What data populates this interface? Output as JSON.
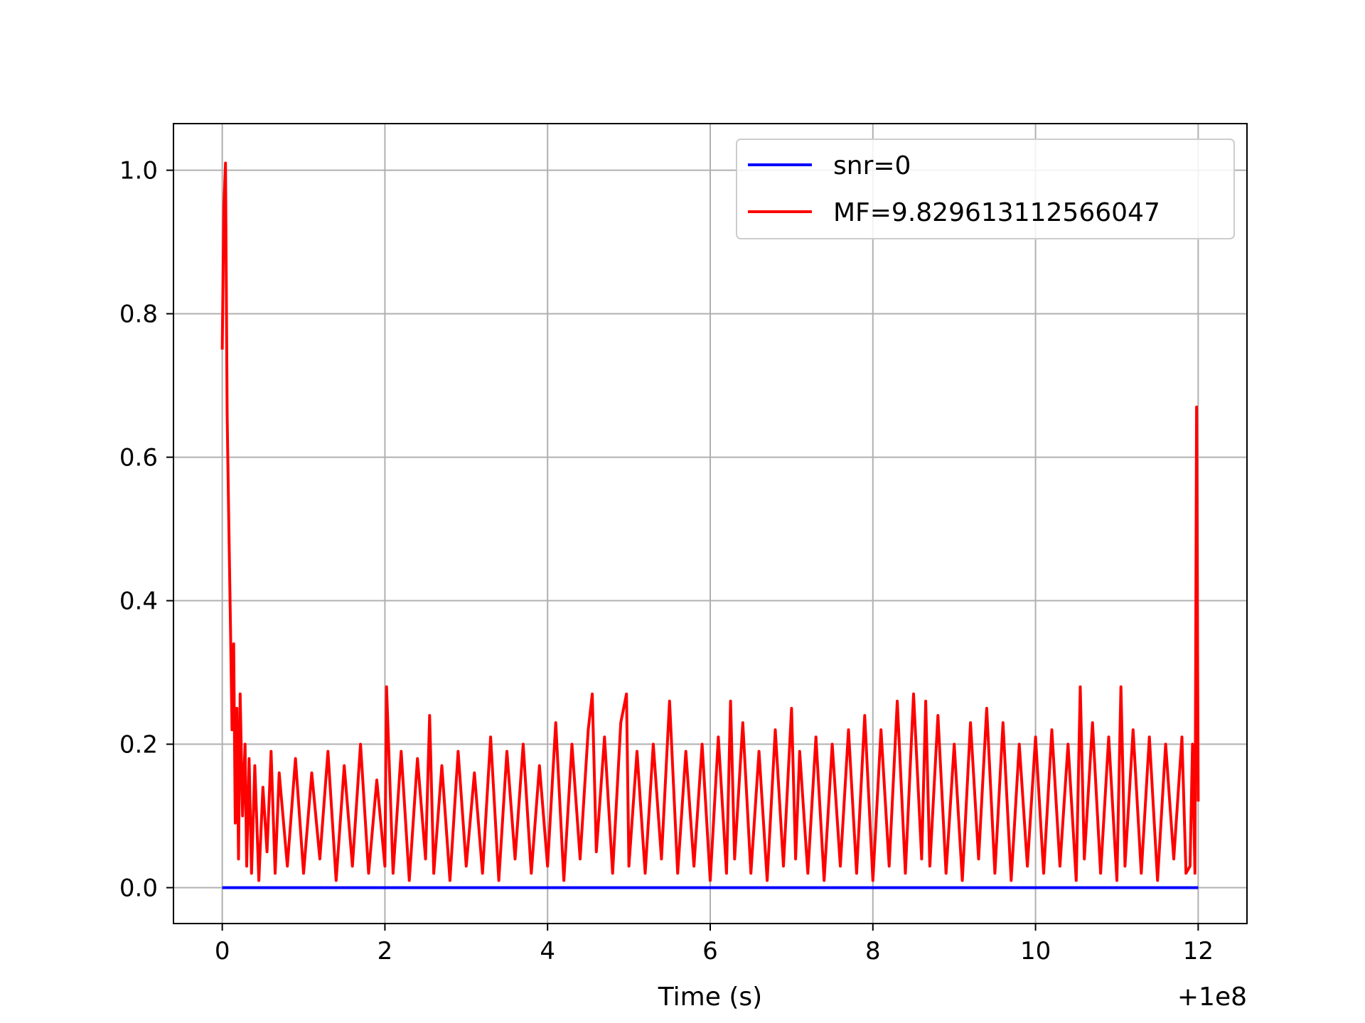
{
  "chart_data": {
    "type": "line",
    "title": "",
    "xlabel": "Time (s)",
    "ylabel": "",
    "x_offset_label": "+1e8",
    "xlim": [
      -0.6,
      12.6
    ],
    "ylim": [
      -0.05,
      1.065
    ],
    "xticks": [
      0,
      2,
      4,
      6,
      8,
      10,
      12
    ],
    "xtick_labels": [
      "0",
      "2",
      "4",
      "6",
      "8",
      "10",
      "12"
    ],
    "yticks": [
      0.0,
      0.2,
      0.4,
      0.6,
      0.8,
      1.0
    ],
    "ytick_labels": [
      "0.0",
      "0.2",
      "0.4",
      "0.6",
      "0.8",
      "1.0"
    ],
    "grid": true,
    "legend_position": "top-right",
    "series": [
      {
        "name": "snr=0",
        "color": "#0000ff",
        "x": [
          0,
          12
        ],
        "y": [
          0.0,
          0.0
        ]
      },
      {
        "name": "MF=9.829613112566047",
        "color": "#ff0000",
        "x": [
          0.0,
          0.02,
          0.04,
          0.06,
          0.08,
          0.1,
          0.12,
          0.14,
          0.16,
          0.18,
          0.2,
          0.22,
          0.25,
          0.28,
          0.3,
          0.33,
          0.36,
          0.4,
          0.45,
          0.5,
          0.55,
          0.6,
          0.65,
          0.7,
          0.8,
          0.9,
          1.0,
          1.1,
          1.2,
          1.3,
          1.4,
          1.5,
          1.6,
          1.7,
          1.8,
          1.9,
          2.0,
          2.02,
          2.1,
          2.2,
          2.3,
          2.4,
          2.5,
          2.55,
          2.6,
          2.7,
          2.8,
          2.9,
          3.0,
          3.1,
          3.2,
          3.3,
          3.4,
          3.5,
          3.6,
          3.7,
          3.8,
          3.9,
          4.0,
          4.1,
          4.2,
          4.3,
          4.4,
          4.5,
          4.55,
          4.6,
          4.7,
          4.8,
          4.9,
          4.97,
          5.0,
          5.1,
          5.2,
          5.3,
          5.4,
          5.5,
          5.6,
          5.7,
          5.8,
          5.9,
          6.0,
          6.1,
          6.2,
          6.25,
          6.3,
          6.4,
          6.5,
          6.6,
          6.7,
          6.8,
          6.9,
          7.0,
          7.05,
          7.1,
          7.2,
          7.3,
          7.4,
          7.5,
          7.6,
          7.7,
          7.8,
          7.9,
          8.0,
          8.1,
          8.2,
          8.3,
          8.4,
          8.5,
          8.6,
          8.65,
          8.7,
          8.8,
          8.9,
          9.0,
          9.1,
          9.2,
          9.3,
          9.4,
          9.5,
          9.6,
          9.7,
          9.8,
          9.9,
          10.0,
          10.1,
          10.2,
          10.3,
          10.4,
          10.5,
          10.55,
          10.6,
          10.7,
          10.8,
          10.9,
          11.0,
          11.05,
          11.1,
          11.2,
          11.3,
          11.4,
          11.5,
          11.6,
          11.7,
          11.8,
          11.85,
          11.9,
          11.93,
          11.96,
          11.98,
          12.0
        ],
        "y": [
          0.75,
          0.95,
          1.01,
          0.66,
          0.51,
          0.37,
          0.22,
          0.34,
          0.09,
          0.25,
          0.04,
          0.27,
          0.1,
          0.2,
          0.03,
          0.18,
          0.02,
          0.17,
          0.01,
          0.14,
          0.05,
          0.19,
          0.02,
          0.16,
          0.03,
          0.18,
          0.02,
          0.16,
          0.04,
          0.19,
          0.01,
          0.17,
          0.03,
          0.2,
          0.02,
          0.15,
          0.03,
          0.28,
          0.02,
          0.19,
          0.01,
          0.18,
          0.04,
          0.24,
          0.02,
          0.17,
          0.01,
          0.19,
          0.03,
          0.16,
          0.02,
          0.21,
          0.01,
          0.19,
          0.04,
          0.2,
          0.02,
          0.17,
          0.03,
          0.23,
          0.01,
          0.2,
          0.04,
          0.22,
          0.27,
          0.05,
          0.21,
          0.02,
          0.23,
          0.27,
          0.03,
          0.19,
          0.02,
          0.2,
          0.04,
          0.26,
          0.02,
          0.19,
          0.03,
          0.2,
          0.01,
          0.21,
          0.02,
          0.26,
          0.04,
          0.23,
          0.02,
          0.19,
          0.01,
          0.22,
          0.03,
          0.25,
          0.04,
          0.19,
          0.02,
          0.21,
          0.01,
          0.2,
          0.03,
          0.22,
          0.02,
          0.24,
          0.01,
          0.22,
          0.03,
          0.26,
          0.02,
          0.27,
          0.04,
          0.26,
          0.03,
          0.24,
          0.02,
          0.2,
          0.01,
          0.23,
          0.04,
          0.25,
          0.02,
          0.23,
          0.01,
          0.2,
          0.03,
          0.21,
          0.02,
          0.22,
          0.03,
          0.2,
          0.01,
          0.28,
          0.04,
          0.23,
          0.02,
          0.21,
          0.01,
          0.28,
          0.03,
          0.22,
          0.02,
          0.21,
          0.01,
          0.2,
          0.04,
          0.21,
          0.02,
          0.03,
          0.2,
          0.02,
          0.67,
          0.12
        ]
      }
    ]
  }
}
